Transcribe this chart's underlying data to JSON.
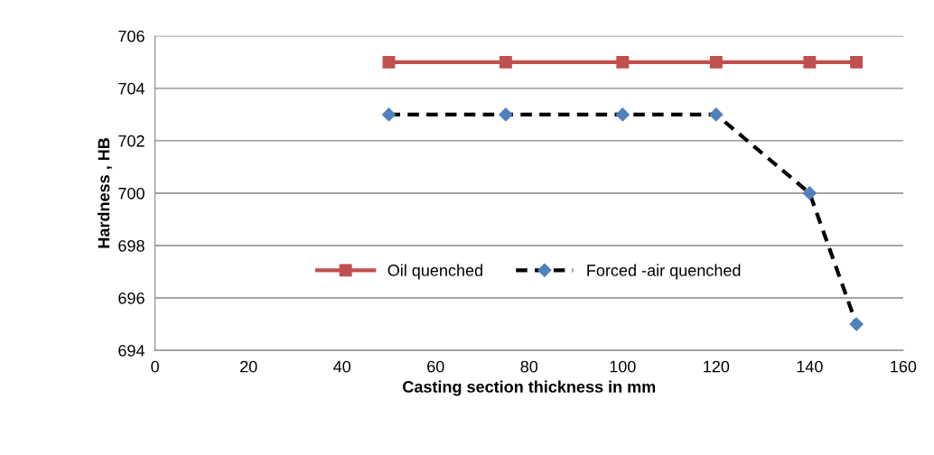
{
  "chart_data": {
    "type": "line",
    "xlabel": "Casting section thickness in mm",
    "ylabel": "Hardness , HB",
    "x": [
      50,
      75,
      100,
      120,
      140,
      150
    ],
    "series": [
      {
        "name": "Oil quenched",
        "color": "#c0504d",
        "marker": "square",
        "line_style": "solid",
        "values": [
          705,
          705,
          705,
          705,
          705,
          705
        ]
      },
      {
        "name": "Forced -air quenched",
        "color": "#000000",
        "colors": [
          "#4f81bd",
          "#4f81bd",
          "#4f81bd",
          "#4f81bd",
          "#4f81bd",
          "#4f81bd"
        ],
        "marker": "diamond",
        "line_style": "dashed",
        "values": [
          703,
          703,
          703,
          703,
          700,
          695
        ]
      }
    ],
    "xlim": [
      0,
      160
    ],
    "xticks": [
      0,
      20,
      40,
      60,
      80,
      100,
      120,
      140,
      160
    ],
    "ylim": [
      694,
      706
    ],
    "yticks": [
      694,
      696,
      698,
      700,
      702,
      704,
      706
    ],
    "grid": "y",
    "legend": "center"
  }
}
